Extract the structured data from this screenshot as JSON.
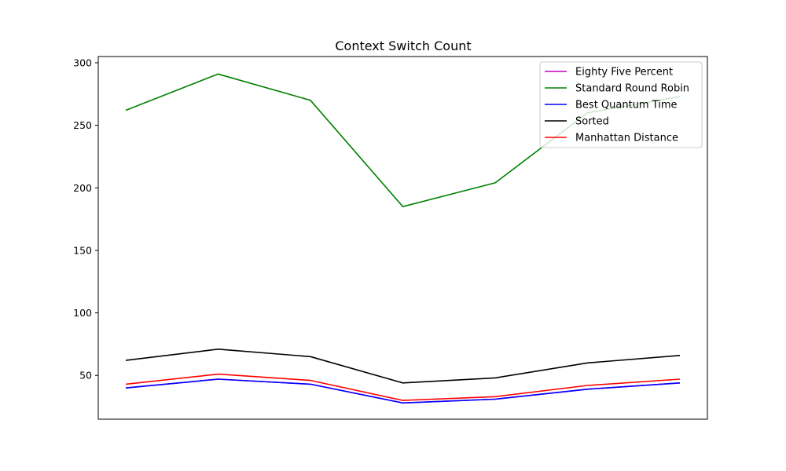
{
  "chart_data": {
    "type": "line",
    "title": "Context Switch Count",
    "xlabel": "",
    "ylabel": "",
    "x": [
      1,
      2,
      3,
      4,
      5,
      6,
      7
    ],
    "xticks_visible": false,
    "yticks": [
      50,
      100,
      150,
      200,
      250,
      300
    ],
    "ylim": [
      15,
      305
    ],
    "grid": false,
    "legend_position": "top-right",
    "series": [
      {
        "name": "Eighty Five Percent",
        "color": "#bf00bf",
        "values": [
          40,
          47,
          43,
          28,
          31,
          39,
          44
        ]
      },
      {
        "name": "Standard Round Robin",
        "color": "#008000",
        "values": [
          262,
          291,
          270,
          185,
          204,
          260,
          273
        ]
      },
      {
        "name": "Best Quantum Time",
        "color": "#0000ff",
        "values": [
          40,
          47,
          43,
          28,
          31,
          39,
          44
        ]
      },
      {
        "name": "Sorted",
        "color": "#000000",
        "values": [
          62,
          71,
          65,
          44,
          48,
          60,
          66
        ]
      },
      {
        "name": "Manhattan Distance",
        "color": "#ff0000",
        "values": [
          43,
          51,
          46,
          30,
          33,
          42,
          47
        ]
      }
    ]
  }
}
